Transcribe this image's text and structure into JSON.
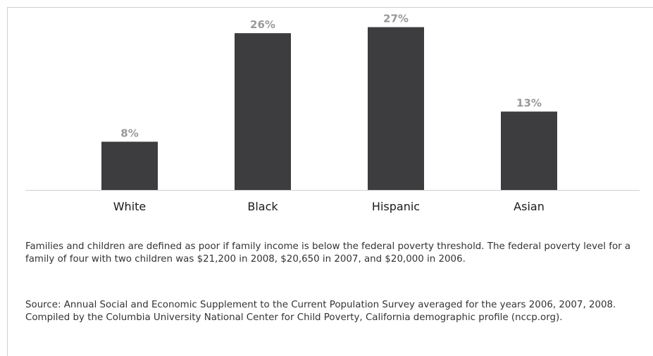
{
  "chart_data": {
    "type": "bar",
    "categories": [
      "White",
      "Black",
      "Hispanic",
      "Asian"
    ],
    "values": [
      8,
      26,
      27,
      13
    ],
    "value_labels": [
      "8%",
      "26%",
      "27%",
      "13%"
    ],
    "ylim": [
      0,
      28
    ],
    "grid": false,
    "bar_color": "#3d3c3e",
    "value_label_color": "#999999",
    "axis_color": "#cfcfcf"
  },
  "notes": {
    "definition": "Families and children are defined as poor if family income is below the federal poverty threshold. The federal poverty level for a family of four with two children was $21,200 in 2008, $20,650 in 2007, and $20,000 in 2006.",
    "source": "Source: Annual Social and Economic Supplement to the Current Population Survey averaged for the years 2006, 2007, 2008. Compiled by the Columbia University National Center for Child Poverty, California demographic profile (nccp.org)."
  }
}
